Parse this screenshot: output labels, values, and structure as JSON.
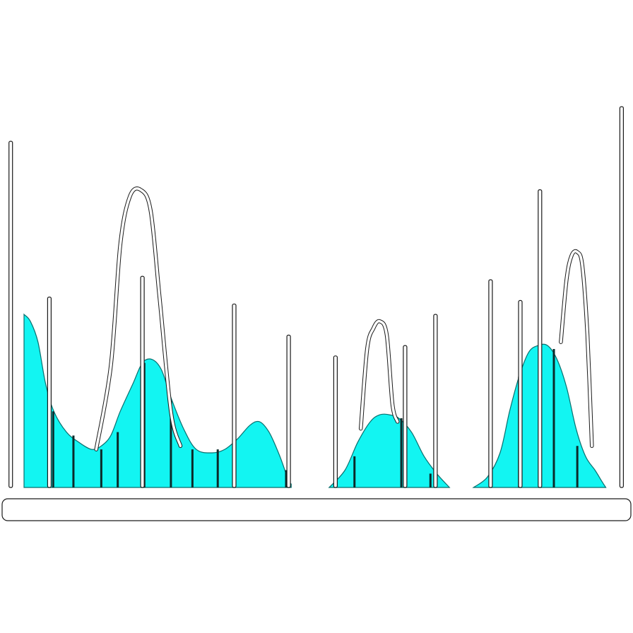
{
  "chart_data": {
    "type": "area",
    "title": "",
    "xlabel": "",
    "ylabel": "",
    "xlim": [
      0,
      1000
    ],
    "ylim": [
      0,
      100
    ],
    "grid": false,
    "fill_color": "#12f5f2",
    "series": [
      {
        "kind": "area",
        "segments": [
          [
            [
              38,
              50
            ],
            [
              48,
              48
            ],
            [
              60,
              42
            ],
            [
              72,
              30
            ],
            [
              85,
              22
            ],
            [
              105,
              16
            ],
            [
              125,
              13
            ],
            [
              145,
              11
            ],
            [
              160,
              12
            ],
            [
              175,
              15
            ],
            [
              190,
              22
            ],
            [
              210,
              30
            ],
            [
              225,
              36
            ],
            [
              240,
              37
            ],
            [
              255,
              34
            ],
            [
              270,
              26
            ],
            [
              290,
              17
            ],
            [
              310,
              11
            ],
            [
              335,
              10
            ],
            [
              355,
              11
            ],
            [
              375,
              14
            ],
            [
              395,
              18
            ],
            [
              410,
              19
            ],
            [
              425,
              16
            ],
            [
              440,
              10
            ],
            [
              450,
              5
            ],
            [
              455,
              2
            ],
            [
              460,
              1
            ]
          ],
          [
            [
              520,
              0
            ],
            [
              545,
              5
            ],
            [
              565,
              13
            ],
            [
              585,
              19
            ],
            [
              600,
              21
            ],
            [
              615,
              21
            ],
            [
              630,
              20
            ],
            [
              650,
              16
            ],
            [
              670,
              9
            ],
            [
              690,
              4
            ],
            [
              710,
              0
            ]
          ],
          [
            [
              748,
              0
            ],
            [
              770,
              3
            ],
            [
              790,
              10
            ],
            [
              805,
              22
            ],
            [
              820,
              32
            ],
            [
              835,
              39
            ],
            [
              850,
              41
            ],
            [
              865,
              41
            ],
            [
              880,
              37
            ],
            [
              895,
              29
            ],
            [
              910,
              17
            ],
            [
              925,
              9
            ],
            [
              940,
              5
            ],
            [
              950,
              2
            ],
            [
              957,
              0
            ]
          ]
        ]
      },
      {
        "kind": "bars",
        "x": [
          84,
          116,
          160,
          186,
          228,
          270,
          304,
          344,
          452,
          560,
          634,
          680,
          820,
          875,
          912
        ],
        "values": [
          22,
          15,
          11,
          16,
          36,
          25,
          11,
          11,
          5,
          9,
          20,
          4,
          32,
          40,
          12
        ]
      },
      {
        "kind": "spikes",
        "x": [
          17,
          78,
          225,
          370,
          456,
          530,
          640,
          688,
          775,
          822,
          853,
          982
        ],
        "values": [
          100,
          55,
          61,
          53,
          44,
          38,
          41,
          50,
          60,
          54,
          86,
          110
        ]
      },
      {
        "kind": "outline",
        "segments": [
          [
            [
              152,
              11
            ],
            [
              175,
              35
            ],
            [
              190,
              70
            ],
            [
              205,
              84
            ],
            [
              222,
              86
            ],
            [
              238,
              80
            ],
            [
              252,
              55
            ],
            [
              270,
              22
            ],
            [
              285,
              12
            ]
          ],
          [
            [
              570,
              17
            ],
            [
              580,
              40
            ],
            [
              590,
              46
            ],
            [
              600,
              48
            ],
            [
              611,
              44
            ],
            [
              620,
              24
            ],
            [
              628,
              19
            ]
          ],
          [
            [
              886,
              42
            ],
            [
              895,
              60
            ],
            [
              903,
              67
            ],
            [
              912,
              68
            ],
            [
              920,
              64
            ],
            [
              928,
              44
            ],
            [
              935,
              12
            ]
          ]
        ]
      }
    ]
  }
}
